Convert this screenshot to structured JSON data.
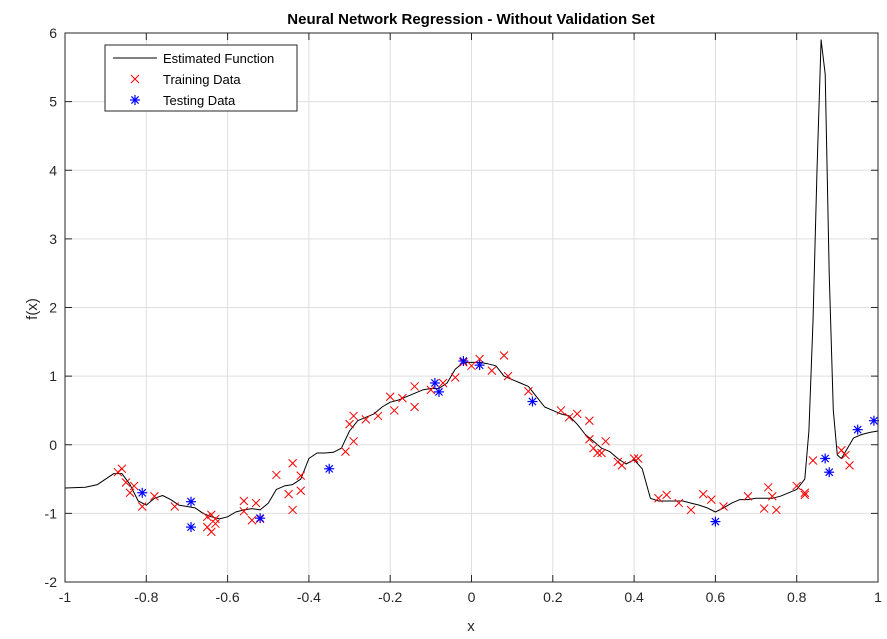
{
  "chart_data": {
    "type": "line",
    "title": "Neural Network Regression - Without Validation Set",
    "xlabel": "x",
    "ylabel": "f(x)",
    "xlim": [
      -1,
      1
    ],
    "ylim": [
      -2,
      6
    ],
    "xticks": [
      "-1",
      "-0.8",
      "-0.6",
      "-0.4",
      "-0.2",
      "0",
      "0.2",
      "0.4",
      "0.6",
      "0.8",
      "1"
    ],
    "yticks": [
      "-2",
      "-1",
      "0",
      "1",
      "2",
      "3",
      "4",
      "5",
      "6"
    ],
    "grid": true,
    "legend_position": "top-left",
    "series": [
      {
        "name": "Estimated Function",
        "style": "line",
        "color": "#000000",
        "x": [
          -1.0,
          -0.95,
          -0.92,
          -0.9,
          -0.88,
          -0.86,
          -0.84,
          -0.82,
          -0.8,
          -0.78,
          -0.76,
          -0.74,
          -0.72,
          -0.7,
          -0.68,
          -0.66,
          -0.64,
          -0.62,
          -0.6,
          -0.58,
          -0.56,
          -0.54,
          -0.52,
          -0.5,
          -0.48,
          -0.46,
          -0.44,
          -0.42,
          -0.4,
          -0.38,
          -0.36,
          -0.34,
          -0.32,
          -0.3,
          -0.28,
          -0.26,
          -0.24,
          -0.22,
          -0.2,
          -0.18,
          -0.16,
          -0.14,
          -0.12,
          -0.1,
          -0.08,
          -0.06,
          -0.04,
          -0.02,
          0.0,
          0.02,
          0.04,
          0.06,
          0.08,
          0.1,
          0.12,
          0.14,
          0.16,
          0.18,
          0.2,
          0.22,
          0.24,
          0.26,
          0.28,
          0.3,
          0.32,
          0.34,
          0.36,
          0.38,
          0.4,
          0.42,
          0.44,
          0.46,
          0.48,
          0.5,
          0.52,
          0.54,
          0.56,
          0.58,
          0.6,
          0.62,
          0.64,
          0.66,
          0.68,
          0.7,
          0.72,
          0.74,
          0.76,
          0.78,
          0.8,
          0.82,
          0.83,
          0.84,
          0.85,
          0.86,
          0.87,
          0.88,
          0.89,
          0.9,
          0.91,
          0.92,
          0.94,
          0.96,
          0.98,
          1.0
        ],
        "y": [
          -0.63,
          -0.62,
          -0.58,
          -0.5,
          -0.42,
          -0.42,
          -0.58,
          -0.82,
          -0.88,
          -0.78,
          -0.74,
          -0.8,
          -0.88,
          -0.9,
          -0.92,
          -1.0,
          -1.05,
          -1.08,
          -1.05,
          -0.98,
          -0.95,
          -0.93,
          -0.95,
          -0.85,
          -0.65,
          -0.6,
          -0.58,
          -0.5,
          -0.2,
          -0.12,
          -0.12,
          -0.11,
          -0.05,
          0.2,
          0.35,
          0.4,
          0.45,
          0.55,
          0.62,
          0.65,
          0.7,
          0.75,
          0.8,
          0.82,
          0.82,
          0.9,
          1.1,
          1.2,
          1.2,
          1.2,
          1.18,
          1.15,
          1.0,
          0.95,
          0.9,
          0.85,
          0.7,
          0.55,
          0.5,
          0.45,
          0.42,
          0.3,
          0.15,
          0.05,
          -0.05,
          -0.1,
          -0.2,
          -0.28,
          -0.22,
          -0.35,
          -0.78,
          -0.82,
          -0.82,
          -0.82,
          -0.82,
          -0.85,
          -0.88,
          -0.92,
          -0.98,
          -0.92,
          -0.85,
          -0.8,
          -0.8,
          -0.78,
          -0.78,
          -0.78,
          -0.75,
          -0.7,
          -0.65,
          -0.5,
          0.2,
          1.8,
          4.0,
          5.9,
          5.4,
          2.5,
          0.5,
          -0.15,
          -0.2,
          -0.1,
          0.1,
          0.15,
          0.18,
          0.2
        ]
      },
      {
        "name": "Training Data",
        "style": "marker-x",
        "color": "#ff0000",
        "x": [
          -0.87,
          -0.86,
          -0.85,
          -0.84,
          -0.83,
          -0.81,
          -0.78,
          -0.73,
          -0.65,
          -0.65,
          -0.64,
          -0.64,
          -0.63,
          -0.63,
          -0.56,
          -0.56,
          -0.54,
          -0.53,
          -0.52,
          -0.48,
          -0.45,
          -0.44,
          -0.44,
          -0.42,
          -0.42,
          -0.31,
          -0.3,
          -0.29,
          -0.29,
          -0.26,
          -0.23,
          -0.2,
          -0.19,
          -0.17,
          -0.14,
          -0.14,
          -0.1,
          -0.07,
          -0.04,
          -0.02,
          0.0,
          0.02,
          0.05,
          0.08,
          0.09,
          0.14,
          0.22,
          0.24,
          0.26,
          0.29,
          0.29,
          0.3,
          0.31,
          0.32,
          0.33,
          0.36,
          0.37,
          0.4,
          0.41,
          0.46,
          0.48,
          0.51,
          0.54,
          0.57,
          0.59,
          0.62,
          0.68,
          0.72,
          0.73,
          0.74,
          0.75,
          0.8,
          0.82,
          0.82,
          0.84,
          0.91,
          0.92,
          0.93
        ],
        "y": [
          -0.4,
          -0.35,
          -0.55,
          -0.7,
          -0.6,
          -0.9,
          -0.75,
          -0.9,
          -1.2,
          -1.05,
          -1.02,
          -1.27,
          -1.08,
          -1.15,
          -0.82,
          -0.97,
          -1.1,
          -0.85,
          -1.08,
          -0.44,
          -0.72,
          -0.95,
          -0.27,
          -0.67,
          -0.45,
          -0.1,
          0.3,
          0.05,
          0.42,
          0.37,
          0.42,
          0.7,
          0.5,
          0.68,
          0.85,
          0.55,
          0.8,
          0.9,
          0.98,
          1.2,
          1.15,
          1.25,
          1.08,
          1.3,
          1.0,
          0.78,
          0.5,
          0.4,
          0.45,
          0.35,
          0.08,
          -0.05,
          -0.12,
          -0.12,
          0.05,
          -0.25,
          -0.3,
          -0.2,
          -0.2,
          -0.78,
          -0.73,
          -0.85,
          -0.95,
          -0.72,
          -0.8,
          -0.9,
          -0.75,
          -0.93,
          -0.62,
          -0.75,
          -0.95,
          -0.6,
          -0.73,
          -0.7,
          -0.23,
          -0.08,
          -0.15,
          -0.3
        ]
      },
      {
        "name": "Testing Data",
        "style": "marker-star",
        "color": "#0000ff",
        "x": [
          -0.81,
          -0.69,
          -0.69,
          -0.52,
          -0.35,
          -0.09,
          -0.08,
          -0.02,
          0.02,
          0.15,
          0.6,
          0.87,
          0.88,
          0.95,
          0.99
        ],
        "y": [
          -0.7,
          -0.83,
          -1.2,
          -1.07,
          -0.35,
          0.9,
          0.77,
          1.22,
          1.16,
          0.63,
          -1.12,
          -0.2,
          -0.4,
          0.22,
          0.35
        ]
      }
    ]
  }
}
